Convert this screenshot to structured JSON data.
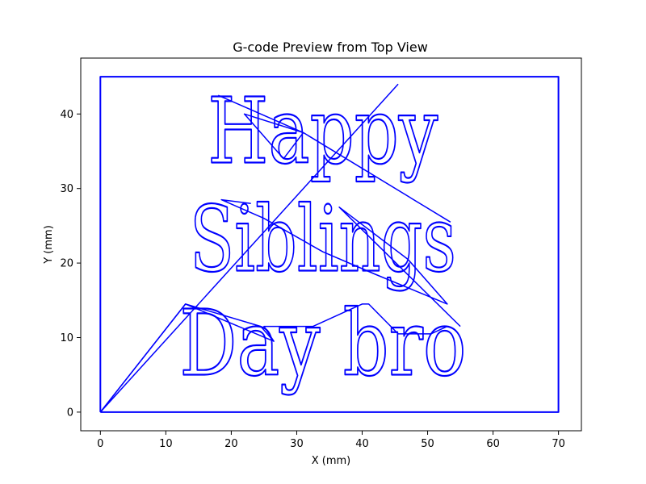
{
  "chart_data": {
    "type": "line",
    "title": "G-code Preview from Top View",
    "xlabel": "X (mm)",
    "ylabel": "Y (mm)",
    "xlim": [
      -3,
      73.5
    ],
    "ylim": [
      -2.5,
      47.5
    ],
    "xticks": [
      0,
      10,
      20,
      30,
      40,
      50,
      60,
      70
    ],
    "yticks": [
      0,
      10,
      20,
      30,
      40
    ],
    "grid": false,
    "line_color": "#0000ff",
    "series": [
      {
        "kind": "border",
        "values": [
          [
            0,
            0
          ],
          [
            0,
            45
          ],
          [
            70,
            45
          ],
          [
            70,
            0
          ],
          [
            0,
            0
          ]
        ]
      },
      {
        "kind": "travel",
        "values": [
          [
            0,
            0
          ],
          [
            45.5,
            44
          ]
        ]
      },
      {
        "kind": "travel",
        "values": [
          [
            18,
            42.5
          ],
          [
            31,
            37.5
          ],
          [
            28,
            34
          ],
          [
            22,
            40
          ],
          [
            31,
            37.5
          ],
          [
            53.5,
            25.5
          ]
        ]
      },
      {
        "kind": "travel",
        "values": [
          [
            23,
            28
          ],
          [
            18.5,
            28.5
          ],
          [
            25,
            26
          ],
          [
            34,
            21.5
          ],
          [
            42,
            18.5
          ],
          [
            53,
            14.5
          ],
          [
            47,
            20.5
          ],
          [
            36.5,
            27.5
          ],
          [
            55,
            11.5
          ]
        ]
      },
      {
        "kind": "travel",
        "values": [
          [
            0,
            0
          ],
          [
            13,
            14.5
          ],
          [
            26.5,
            9.5
          ],
          [
            25,
            11.5
          ],
          [
            32.5,
            11.5
          ],
          [
            40,
            14.5
          ],
          [
            41,
            14.5
          ],
          [
            45.5,
            10.5
          ],
          [
            50.5,
            10.5
          ],
          [
            53,
            11.5
          ]
        ]
      },
      {
        "kind": "travel",
        "values": [
          [
            0,
            0
          ],
          [
            13,
            14.5
          ],
          [
            24.5,
            11.5
          ],
          [
            26.5,
            9.5
          ]
        ]
      }
    ],
    "text_paths": [
      {
        "text": "Happy",
        "x": 34,
        "y": 33.5
      },
      {
        "text": "Siblings",
        "x": 34,
        "y": 19
      },
      {
        "text": "Day bro",
        "x": 34,
        "y": 5
      }
    ]
  }
}
